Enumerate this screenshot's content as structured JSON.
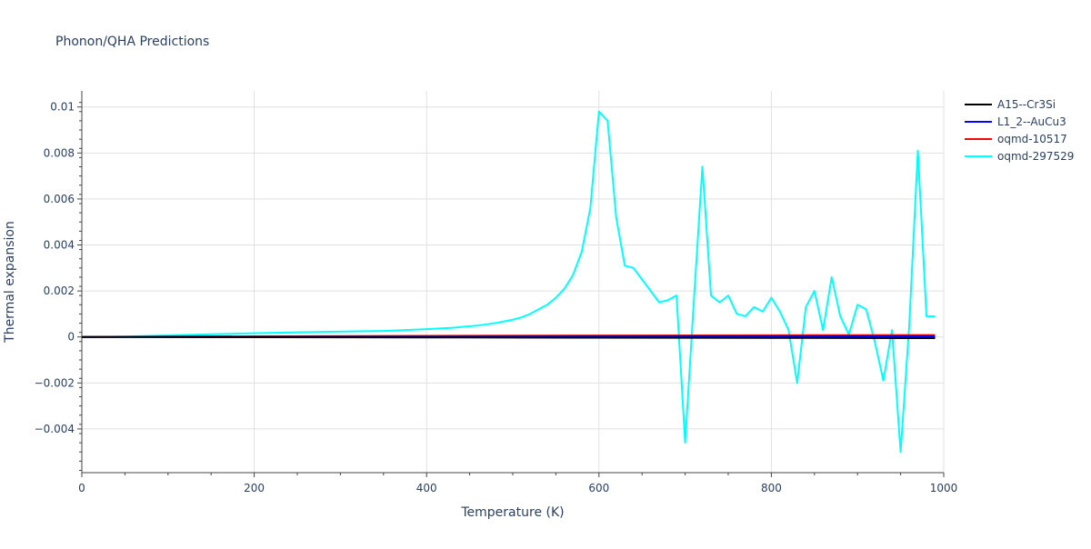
{
  "chart_data": {
    "type": "line",
    "title": "Phonon/QHA Predictions",
    "xlabel": "Temperature (K)",
    "ylabel": "Thermal expansion",
    "xlim": [
      0,
      1000
    ],
    "ylim": [
      -0.0059,
      0.0107
    ],
    "x_ticks": [
      0,
      200,
      400,
      600,
      800,
      1000
    ],
    "x_tick_labels": [
      "0",
      "200",
      "400",
      "600",
      "800",
      "1000"
    ],
    "y_ticks": [
      -0.004,
      -0.002,
      0,
      0.002,
      0.004,
      0.006,
      0.008,
      0.01
    ],
    "y_tick_labels": [
      "−0.004",
      "−0.002",
      "0",
      "0.002",
      "0.004",
      "0.006",
      "0.008",
      "0.01"
    ],
    "grid": true,
    "legend_position": "top-right outside",
    "series": [
      {
        "name": "A15--Cr3Si",
        "color": "#000000",
        "x": [
          0,
          100,
          200,
          300,
          400,
          500,
          600,
          700,
          800,
          900,
          990
        ],
        "y": [
          0,
          -5e-06,
          -1e-05,
          -1.5e-05,
          -2e-05,
          -2.5e-05,
          -3e-05,
          -3.5e-05,
          -4e-05,
          -4.5e-05,
          -5e-05
        ]
      },
      {
        "name": "L1_2--AuCu3",
        "color": "#0000ff",
        "x": [
          0,
          100,
          200,
          300,
          400,
          500,
          600,
          700,
          800,
          900,
          990
        ],
        "y": [
          0,
          3e-06,
          6e-06,
          9e-06,
          1.2e-05,
          1.5e-05,
          1.8e-05,
          2.1e-05,
          2.4e-05,
          2.7e-05,
          3e-05
        ]
      },
      {
        "name": "oqmd-10517",
        "color": "#ff0000",
        "x": [
          0,
          50,
          100,
          200,
          300,
          400,
          500,
          600,
          700,
          800,
          900,
          990
        ],
        "y": [
          0,
          5e-06,
          1.5e-05,
          3e-05,
          4e-05,
          5e-05,
          5.8e-05,
          6.5e-05,
          7e-05,
          7.5e-05,
          8e-05,
          8.5e-05
        ]
      },
      {
        "name": "oqmd-297529",
        "color": "#00ffff",
        "x": [
          0,
          50,
          100,
          150,
          200,
          250,
          300,
          350,
          400,
          430,
          460,
          480,
          500,
          510,
          520,
          530,
          540,
          550,
          560,
          570,
          580,
          590,
          600,
          610,
          620,
          630,
          640,
          650,
          660,
          670,
          680,
          690,
          700,
          710,
          720,
          730,
          740,
          750,
          760,
          770,
          780,
          790,
          800,
          810,
          820,
          830,
          840,
          850,
          860,
          870,
          880,
          890,
          900,
          910,
          920,
          930,
          940,
          950,
          960,
          970,
          980,
          990
        ],
        "y": [
          0,
          2e-05,
          7e-05,
          0.00012,
          0.00016,
          0.0002,
          0.00023,
          0.00026,
          0.00034,
          0.0004,
          0.0005,
          0.0006,
          0.00075,
          0.00085,
          0.001,
          0.0012,
          0.0014,
          0.0017,
          0.0021,
          0.0027,
          0.0037,
          0.0056,
          0.0098,
          0.0094,
          0.0052,
          0.0031,
          0.003,
          0.0025,
          0.002,
          0.0015,
          0.0016,
          0.0018,
          -0.0046,
          0.0015,
          0.0074,
          0.0018,
          0.0015,
          0.0018,
          0.001,
          0.0009,
          0.0013,
          0.0011,
          0.0017,
          0.0011,
          0.0003,
          -0.002,
          0.0013,
          0.002,
          0.0003,
          0.0026,
          0.0009,
          0.0001,
          0.0014,
          0.0012,
          -0.0002,
          -0.0019,
          0.0003,
          -0.005,
          0.0005,
          0.0081,
          0.0009,
          0.0009
        ]
      }
    ]
  }
}
